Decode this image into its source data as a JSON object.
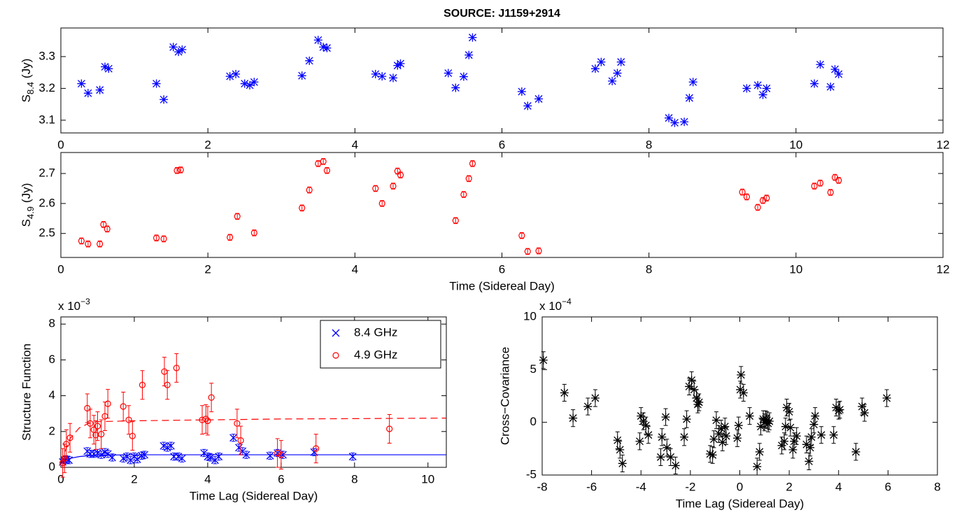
{
  "chart_data": [
    {
      "type": "scatter",
      "title": "SOURCE: J1159+2914",
      "ylabel": {
        "symbol": "S",
        "subscript": "8.4",
        "unit": "(Jy)"
      },
      "xlim": [
        0,
        12
      ],
      "ylim": [
        3.06,
        3.39
      ],
      "xticks": [
        0,
        2,
        4,
        6,
        8,
        10,
        12
      ],
      "yticks": [
        3.1,
        3.2,
        3.3
      ],
      "series": [
        {
          "color": "#0000ff",
          "marker": "asterisk",
          "x": [
            0.28,
            0.37,
            0.53,
            0.6,
            0.65,
            1.3,
            1.4,
            1.53,
            1.6,
            1.65,
            2.3,
            2.38,
            2.5,
            2.57,
            2.63,
            3.28,
            3.38,
            3.5,
            3.57,
            3.62,
            4.28,
            4.37,
            4.52,
            4.58,
            4.62,
            5.27,
            5.37,
            5.48,
            5.55,
            5.6,
            6.27,
            6.35,
            6.5,
            7.27,
            7.35,
            7.5,
            7.57,
            7.62,
            8.27,
            8.35,
            8.48,
            8.55,
            8.6,
            9.33,
            9.48,
            9.55,
            9.6,
            10.25,
            10.33,
            10.47,
            10.53,
            10.58
          ],
          "values": [
            3.215,
            3.185,
            3.195,
            3.268,
            3.262,
            3.215,
            3.165,
            3.33,
            3.315,
            3.322,
            3.238,
            3.245,
            3.215,
            3.21,
            3.22,
            3.24,
            3.287,
            3.352,
            3.33,
            3.327,
            3.245,
            3.238,
            3.233,
            3.272,
            3.278,
            3.248,
            3.202,
            3.237,
            3.305,
            3.36,
            3.19,
            3.145,
            3.167,
            3.262,
            3.283,
            3.223,
            3.248,
            3.283,
            3.107,
            3.092,
            3.095,
            3.17,
            3.22,
            3.2,
            3.21,
            3.18,
            3.2,
            3.215,
            3.275,
            3.205,
            3.26,
            3.245
          ]
        }
      ]
    },
    {
      "type": "scatter",
      "xlabel": "Time (Sidereal Day)",
      "ylabel": {
        "symbol": "S",
        "subscript": "4.9",
        "unit": "(Jy)"
      },
      "xlim": [
        0,
        12
      ],
      "ylim": [
        2.42,
        2.77
      ],
      "xticks": [
        0,
        2,
        4,
        6,
        8,
        10,
        12
      ],
      "yticks": [
        2.5,
        2.6,
        2.7
      ],
      "series": [
        {
          "color": "#ff0000",
          "marker": "circle",
          "error": 0.01,
          "x": [
            0.28,
            0.37,
            0.53,
            0.58,
            0.63,
            1.3,
            1.4,
            1.58,
            1.63,
            2.3,
            2.4,
            2.63,
            3.28,
            3.38,
            3.5,
            3.57,
            3.62,
            4.28,
            4.37,
            4.52,
            4.58,
            4.62,
            5.37,
            5.48,
            5.55,
            5.6,
            6.27,
            6.35,
            6.5,
            9.27,
            9.33,
            9.48,
            9.55,
            9.6,
            10.25,
            10.33,
            10.47,
            10.53,
            10.58
          ],
          "values": [
            2.475,
            2.465,
            2.465,
            2.53,
            2.515,
            2.485,
            2.482,
            2.71,
            2.712,
            2.487,
            2.557,
            2.502,
            2.585,
            2.645,
            2.733,
            2.74,
            2.71,
            2.65,
            2.6,
            2.658,
            2.708,
            2.695,
            2.543,
            2.63,
            2.683,
            2.733,
            2.493,
            2.44,
            2.442,
            2.638,
            2.622,
            2.587,
            2.61,
            2.618,
            2.658,
            2.668,
            2.637,
            2.687,
            2.677
          ]
        }
      ]
    },
    {
      "type": "scatter",
      "xlabel": "Time Lag (Sidereal Day)",
      "ylabel": "Structure Function",
      "multiplier": {
        "base": "x 10",
        "exponent": "−3"
      },
      "xlim": [
        0,
        10.5
      ],
      "ylim": [
        0,
        8.4
      ],
      "xticks": [
        0,
        2,
        4,
        6,
        8,
        10
      ],
      "yticks": [
        0,
        2,
        4,
        6,
        8
      ],
      "legend": "upper-right",
      "series": [
        {
          "name": "8.4 GHz",
          "color": "#0000ff",
          "marker": "x",
          "error": 0.2,
          "x": [
            0.05,
            0.1,
            0.15,
            0.22,
            0.72,
            0.8,
            0.9,
            1.0,
            1.1,
            1.2,
            1.28,
            1.4,
            1.7,
            1.8,
            1.9,
            2.0,
            2.08,
            2.2,
            2.28,
            2.8,
            2.9,
            3.0,
            3.08,
            3.2,
            3.3,
            3.9,
            4.0,
            4.08,
            4.2,
            4.3,
            4.7,
            4.85,
            4.95,
            5.05,
            5.7,
            5.9,
            6.05,
            6.9,
            7.95
          ],
          "values": [
            0.3,
            0.4,
            0.45,
            0.4,
            0.9,
            0.75,
            0.75,
            0.8,
            0.7,
            0.85,
            0.75,
            0.55,
            0.5,
            0.6,
            0.4,
            0.6,
            0.45,
            0.65,
            0.7,
            1.2,
            1.1,
            1.2,
            0.6,
            0.6,
            0.5,
            0.8,
            0.6,
            0.55,
            0.4,
            0.6,
            1.65,
            1.1,
            0.9,
            0.7,
            0.65,
            0.8,
            0.7,
            0.85,
            0.6
          ]
        },
        {
          "name": "4.9 GHz",
          "color": "#ff0000",
          "marker": "circle",
          "error": 0.8,
          "x": [
            0.05,
            0.1,
            0.15,
            0.25,
            0.72,
            0.8,
            0.9,
            0.95,
            1.0,
            1.1,
            1.2,
            1.28,
            1.7,
            1.85,
            1.95,
            2.22,
            2.82,
            2.9,
            3.15,
            3.85,
            3.95,
            4.0,
            4.1,
            4.8,
            4.9,
            5.9,
            6.0,
            6.95,
            8.95
          ],
          "values": [
            0.25,
            0.5,
            1.3,
            1.65,
            3.3,
            2.45,
            2.1,
            1.8,
            2.3,
            1.85,
            2.85,
            3.55,
            3.4,
            2.65,
            1.75,
            4.6,
            5.35,
            4.6,
            5.55,
            2.65,
            2.7,
            2.6,
            3.9,
            2.45,
            1.5,
            0.8,
            0.7,
            1.05,
            2.15
          ]
        }
      ],
      "fits": [
        {
          "color": "#ff0000",
          "dash": true,
          "x": [
            0,
            0.25,
            0.5,
            0.75,
            1,
            2,
            4,
            6,
            8,
            10.5
          ],
          "values": [
            0.3,
            1.6,
            2.2,
            2.45,
            2.55,
            2.6,
            2.65,
            2.7,
            2.72,
            2.75
          ]
        },
        {
          "color": "#0000ff",
          "dash": false,
          "x": [
            0,
            0.25,
            0.5,
            0.75,
            1,
            2,
            4,
            6,
            8,
            10.5
          ],
          "values": [
            0.3,
            0.5,
            0.6,
            0.65,
            0.68,
            0.7,
            0.7,
            0.7,
            0.7,
            0.7
          ]
        }
      ]
    },
    {
      "type": "scatter",
      "xlabel": "Time Lag (Sidereal Day)",
      "ylabel": "Cross−Covariance",
      "multiplier": {
        "base": "x 10",
        "exponent": "−4"
      },
      "xlim": [
        -8,
        8
      ],
      "ylim": [
        -5,
        10
      ],
      "xticks": [
        -8,
        -6,
        -4,
        -2,
        0,
        2,
        4,
        6,
        8
      ],
      "yticks": [
        -5,
        0,
        5,
        10
      ],
      "series": [
        {
          "color": "#000000",
          "marker": "asterisk",
          "error": 0.8,
          "x": [
            -7.95,
            -7.1,
            -6.75,
            -6.15,
            -5.85,
            -4.95,
            -4.85,
            -4.75,
            -4.05,
            -4.0,
            -3.9,
            -3.8,
            -3.7,
            -3.2,
            -3.15,
            -3.0,
            -2.95,
            -2.8,
            -2.6,
            -2.25,
            -2.15,
            -2.05,
            -1.95,
            -1.85,
            -1.75,
            -1.7,
            -1.65,
            -1.2,
            -1.1,
            -1.05,
            -0.95,
            -0.85,
            -0.75,
            -0.7,
            -0.6,
            -0.55,
            -0.1,
            -0.05,
            0.02,
            0.05,
            0.15,
            0.4,
            0.7,
            0.8,
            0.85,
            0.95,
            1.0,
            1.05,
            1.1,
            1.15,
            1.2,
            1.7,
            1.8,
            1.85,
            1.9,
            2.0,
            2.05,
            2.15,
            2.2,
            2.3,
            2.7,
            2.8,
            2.85,
            2.9,
            3.0,
            3.05,
            3.3,
            3.8,
            3.9,
            4.0,
            4.05,
            4.7,
            4.95,
            5.05,
            5.95
          ],
          "values": [
            5.9,
            2.8,
            0.4,
            1.5,
            2.3,
            -1.7,
            -2.6,
            -3.9,
            -1.8,
            0.6,
            0.1,
            -0.3,
            -1.2,
            -3.3,
            -1.4,
            0.5,
            -2.4,
            -3.3,
            -4.1,
            -1.4,
            0.3,
            3.4,
            4.0,
            3.1,
            2.3,
            1.7,
            1.9,
            -3.0,
            -3.1,
            -1.6,
            0.2,
            -1.1,
            -0.6,
            -1.9,
            -0.4,
            -1.3,
            -1.5,
            -0.3,
            3.1,
            4.5,
            2.8,
            0.6,
            -4.2,
            -2.8,
            -0.4,
            0.3,
            0.0,
            0.3,
            0.2,
            -0.1,
            0.1,
            -2.2,
            -1.8,
            -0.4,
            1.4,
            1.0,
            -0.5,
            -2.6,
            -1.8,
            -1.3,
            -2.1,
            -3.7,
            -2.4,
            -1.4,
            -0.2,
            0.6,
            -1.2,
            -1.2,
            1.4,
            1.1,
            1.2,
            -2.8,
            1.5,
            0.9,
            2.3
          ]
        }
      ]
    }
  ]
}
